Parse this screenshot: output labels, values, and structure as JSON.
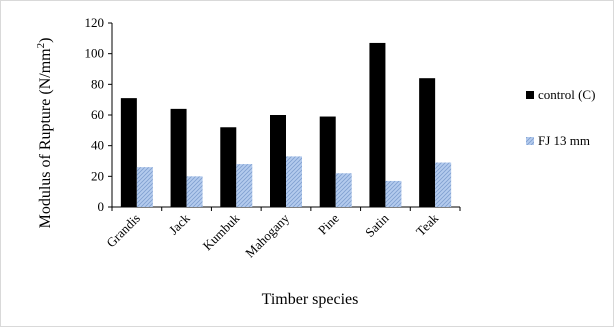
{
  "chart_data": {
    "type": "bar",
    "title": "",
    "xlabel": "Timber species",
    "ylabel": "Modulus of Rupture (N/mm",
    "ylabel_superscript": "2",
    "ylabel_suffix": ")",
    "categories": [
      "Grandis",
      "Jack",
      "Kumbuk",
      "Mahogany",
      "Pine",
      "Satin",
      "Teak"
    ],
    "series": [
      {
        "name": "control (C)",
        "values": [
          71,
          64,
          52,
          60,
          59,
          107,
          84
        ],
        "color": "#000000"
      },
      {
        "name": "FJ 13 mm",
        "values": [
          26,
          20,
          28,
          33,
          22,
          17,
          29
        ],
        "color": "#9db9e3"
      }
    ],
    "ylim": [
      0,
      120
    ],
    "yticks": [
      0,
      20,
      40,
      60,
      80,
      100,
      120
    ],
    "grid": false,
    "legend_position": "right"
  }
}
